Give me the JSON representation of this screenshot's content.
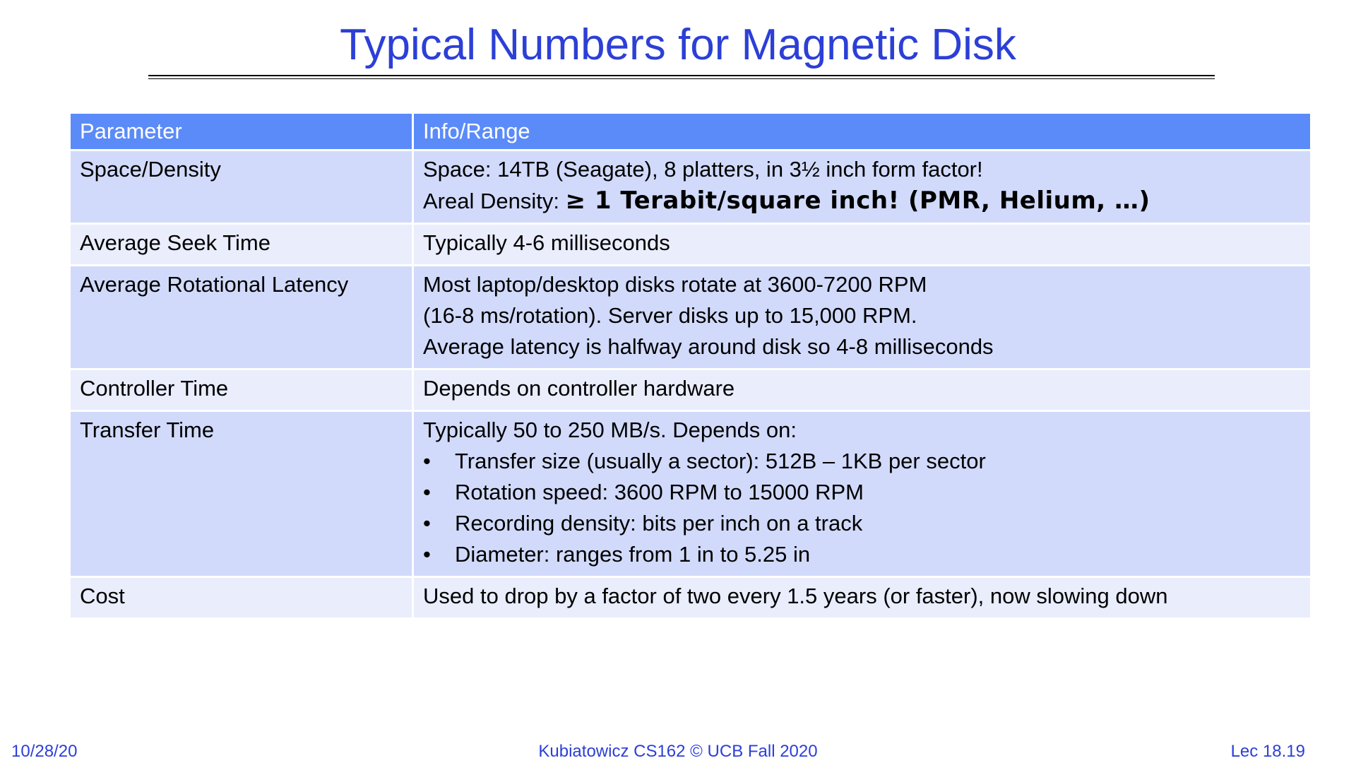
{
  "slide": {
    "title": "Typical Numbers for Magnetic Disk"
  },
  "table": {
    "headers": [
      "Parameter",
      "Info/Range"
    ],
    "rows": [
      {
        "parameter": "Space/Density",
        "lines": [
          "Space: 14TB (Seagate), 8 platters, in 3½ inch form factor!"
        ],
        "emphasis_prefix": "Areal Density: ",
        "emphasis_text": "≥ 1 Terabit/square inch! (PMR, Helium, …)"
      },
      {
        "parameter": "Average Seek Time",
        "lines": [
          "Typically 4-6 milliseconds"
        ]
      },
      {
        "parameter": "Average Rotational Latency",
        "lines": [
          "Most laptop/desktop disks rotate at 3600-7200 RPM",
          "(16-8 ms/rotation). Server disks up to 15,000 RPM.",
          "Average latency is halfway around disk so 4-8 milliseconds"
        ]
      },
      {
        "parameter": "Controller Time",
        "lines": [
          "Depends on controller hardware"
        ]
      },
      {
        "parameter": "Transfer Time",
        "lines": [
          "Typically 50 to 250 MB/s. Depends on:"
        ],
        "bullet_symbol": "•",
        "bullets": [
          "Transfer size (usually a sector): 512B – 1KB per sector",
          "Rotation speed: 3600 RPM to 15000 RPM",
          "Recording density: bits per inch on a track",
          "Diameter: ranges from  1 in to 5.25 in"
        ]
      },
      {
        "parameter": "Cost",
        "lines": [
          "Used to drop by a factor of two every 1.5 years (or faster), now slowing down"
        ]
      }
    ]
  },
  "footer": {
    "date": "10/28/20",
    "course": "Kubiatowicz CS162 © UCB Fall 2020",
    "lecture": "Lec 18.19"
  },
  "colors": {
    "title": "#2c3fd6",
    "header_bg": "#5b8bf9",
    "row_dark": "#d1dafa",
    "row_light": "#e9edfc"
  }
}
